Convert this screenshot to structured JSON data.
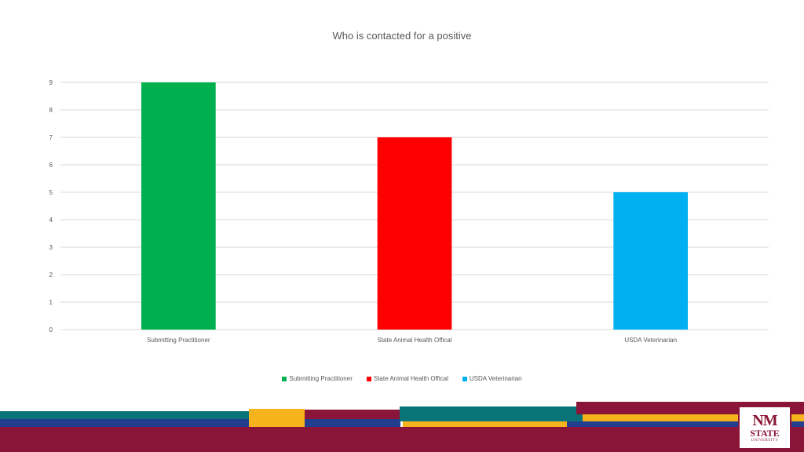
{
  "chart_data": {
    "type": "bar",
    "title": "Who is contacted for a positive",
    "categories": [
      "Submitting Practitioner",
      "State Animal Health Offical",
      "USDA Veterinarian"
    ],
    "values": [
      9,
      7,
      5
    ],
    "colors": [
      "#00b050",
      "#ff0000",
      "#00b0f0"
    ],
    "ylim": [
      0,
      9
    ],
    "yticks": [
      0,
      1,
      2,
      3,
      4,
      5,
      6,
      7,
      8,
      9
    ],
    "xlabel": "",
    "ylabel": "",
    "grid": true,
    "legend": {
      "placement": "bottom",
      "entries": [
        {
          "label": "Submitting Practitioner",
          "color": "#00b050"
        },
        {
          "label": "State Animal Health Offical",
          "color": "#ff0000"
        },
        {
          "label": "USDA Veterinarian",
          "color": "#00b0f0"
        }
      ]
    }
  },
  "branding": {
    "colors": {
      "maroon": "#8a1538",
      "teal": "#0a7479",
      "gold": "#f6b31b",
      "navy": "#233e8e"
    },
    "logo": {
      "line1": "NM",
      "line2": "STATE",
      "line3": "UNIVERSITY"
    }
  }
}
